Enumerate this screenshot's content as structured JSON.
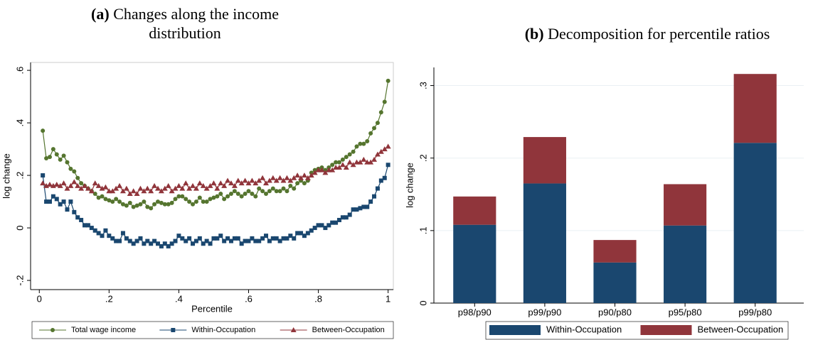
{
  "chart_data": [
    {
      "type": "line",
      "label": "(a)",
      "title": "Changes along the income distribution",
      "xlabel": "Percentile",
      "ylabel": "log change",
      "xlim": [
        -0.025,
        1.015
      ],
      "ylim": [
        -0.235,
        0.63
      ],
      "xticks": [
        0,
        {
          "value": 0.2,
          "label": ".2"
        },
        {
          "value": 0.4,
          "label": ".4"
        },
        {
          "value": 0.6,
          "label": ".6"
        },
        {
          "value": 0.8,
          "label": ".8"
        },
        1
      ],
      "yticks": [
        {
          "value": -0.2,
          "label": "-.2"
        },
        0,
        {
          "value": 0.2,
          "label": ".2"
        },
        {
          "value": 0.4,
          "label": ".4"
        },
        {
          "value": 0.6,
          "label": ".6"
        }
      ],
      "grid": false,
      "legend": "bottom",
      "x": [
        0.01,
        0.02,
        0.03,
        0.04,
        0.05,
        0.06,
        0.07,
        0.08,
        0.09,
        0.1,
        0.11,
        0.12,
        0.13,
        0.14,
        0.15,
        0.16,
        0.17,
        0.18,
        0.19,
        0.2,
        0.21,
        0.22,
        0.23,
        0.24,
        0.25,
        0.26,
        0.27,
        0.28,
        0.29,
        0.3,
        0.31,
        0.32,
        0.33,
        0.34,
        0.35,
        0.36,
        0.37,
        0.38,
        0.39,
        0.4,
        0.41,
        0.42,
        0.43,
        0.44,
        0.45,
        0.46,
        0.47,
        0.48,
        0.49,
        0.5,
        0.51,
        0.52,
        0.53,
        0.54,
        0.55,
        0.56,
        0.57,
        0.58,
        0.59,
        0.6,
        0.61,
        0.62,
        0.63,
        0.64,
        0.65,
        0.66,
        0.67,
        0.68,
        0.69,
        0.7,
        0.71,
        0.72,
        0.73,
        0.74,
        0.75,
        0.76,
        0.77,
        0.78,
        0.79,
        0.8,
        0.81,
        0.82,
        0.83,
        0.84,
        0.85,
        0.86,
        0.87,
        0.88,
        0.89,
        0.9,
        0.91,
        0.92,
        0.93,
        0.94,
        0.95,
        0.96,
        0.97,
        0.98,
        0.99,
        1
      ],
      "series": [
        {
          "name": "Total wage income",
          "color": "#55752f",
          "marker": "circle",
          "values": [
            0.37,
            0.265,
            0.27,
            0.3,
            0.28,
            0.26,
            0.275,
            0.25,
            0.225,
            0.215,
            0.19,
            0.17,
            0.16,
            0.15,
            0.14,
            0.13,
            0.115,
            0.12,
            0.11,
            0.105,
            0.1,
            0.11,
            0.1,
            0.09,
            0.085,
            0.095,
            0.08,
            0.085,
            0.09,
            0.1,
            0.08,
            0.075,
            0.09,
            0.1,
            0.095,
            0.09,
            0.09,
            0.095,
            0.11,
            0.12,
            0.12,
            0.11,
            0.1,
            0.09,
            0.1,
            0.115,
            0.1,
            0.1,
            0.11,
            0.115,
            0.12,
            0.13,
            0.11,
            0.12,
            0.13,
            0.14,
            0.13,
            0.12,
            0.13,
            0.14,
            0.13,
            0.12,
            0.15,
            0.14,
            0.13,
            0.14,
            0.15,
            0.14,
            0.14,
            0.15,
            0.14,
            0.16,
            0.15,
            0.17,
            0.18,
            0.17,
            0.18,
            0.21,
            0.22,
            0.225,
            0.23,
            0.22,
            0.23,
            0.24,
            0.25,
            0.25,
            0.26,
            0.27,
            0.28,
            0.29,
            0.31,
            0.32,
            0.32,
            0.33,
            0.36,
            0.38,
            0.4,
            0.44,
            0.48,
            0.56
          ]
        },
        {
          "name": "Within-Occupation",
          "color": "#1a476f",
          "marker": "square",
          "values": [
            0.2,
            0.1,
            0.1,
            0.12,
            0.11,
            0.09,
            0.1,
            0.07,
            0.1,
            0.06,
            0.04,
            0.03,
            0.01,
            0.01,
            0,
            -0.01,
            -0.02,
            -0.03,
            -0.01,
            -0.03,
            -0.04,
            -0.05,
            -0.05,
            -0.02,
            -0.04,
            -0.05,
            -0.06,
            -0.05,
            -0.04,
            -0.06,
            -0.05,
            -0.06,
            -0.05,
            -0.06,
            -0.07,
            -0.06,
            -0.07,
            -0.06,
            -0.05,
            -0.03,
            -0.04,
            -0.05,
            -0.04,
            -0.06,
            -0.05,
            -0.04,
            -0.06,
            -0.05,
            -0.06,
            -0.04,
            -0.04,
            -0.03,
            -0.05,
            -0.04,
            -0.05,
            -0.04,
            -0.04,
            -0.06,
            -0.05,
            -0.05,
            -0.04,
            -0.05,
            -0.05,
            -0.04,
            -0.03,
            -0.05,
            -0.04,
            -0.04,
            -0.05,
            -0.04,
            -0.04,
            -0.03,
            -0.04,
            -0.02,
            -0.02,
            -0.03,
            -0.02,
            -0.01,
            0,
            0.01,
            0.01,
            0,
            0.01,
            0.02,
            0.02,
            0.03,
            0.04,
            0.04,
            0.05,
            0.07,
            0.07,
            0.075,
            0.08,
            0.08,
            0.1,
            0.12,
            0.15,
            0.18,
            0.19,
            0.24
          ]
        },
        {
          "name": "Between-Occupation",
          "color": "#90353b",
          "marker": "triangle",
          "values": [
            0.17,
            0.16,
            0.165,
            0.16,
            0.165,
            0.16,
            0.17,
            0.15,
            0.16,
            0.175,
            0.16,
            0.15,
            0.16,
            0.15,
            0.14,
            0.17,
            0.16,
            0.15,
            0.155,
            0.14,
            0.14,
            0.15,
            0.16,
            0.14,
            0.15,
            0.13,
            0.14,
            0.13,
            0.15,
            0.14,
            0.15,
            0.14,
            0.16,
            0.15,
            0.14,
            0.15,
            0.16,
            0.14,
            0.15,
            0.16,
            0.15,
            0.17,
            0.15,
            0.16,
            0.15,
            0.17,
            0.16,
            0.15,
            0.16,
            0.17,
            0.15,
            0.17,
            0.16,
            0.18,
            0.17,
            0.16,
            0.18,
            0.17,
            0.18,
            0.17,
            0.18,
            0.17,
            0.18,
            0.19,
            0.17,
            0.18,
            0.19,
            0.18,
            0.19,
            0.18,
            0.19,
            0.18,
            0.19,
            0.2,
            0.19,
            0.2,
            0.19,
            0.2,
            0.21,
            0.22,
            0.22,
            0.21,
            0.22,
            0.22,
            0.23,
            0.23,
            0.24,
            0.23,
            0.25,
            0.24,
            0.25,
            0.25,
            0.26,
            0.25,
            0.25,
            0.26,
            0.28,
            0.29,
            0.3,
            0.31
          ]
        }
      ]
    },
    {
      "type": "stacked_bar",
      "label": "(b)",
      "title": "Decomposition for percentile ratios",
      "ylabel": "log change",
      "ylim": [
        0,
        0.325
      ],
      "yticks": [
        0,
        {
          "value": 0.1,
          "label": ".1"
        },
        {
          "value": 0.2,
          "label": ".2"
        },
        {
          "value": 0.3,
          "label": ".3"
        }
      ],
      "grid": true,
      "legend": "bottom",
      "categories": [
        "p98/p90",
        "p99/p90",
        "p90/p80",
        "p95/p80",
        "p99/p80"
      ],
      "series": [
        {
          "name": "Within-Occupation",
          "color": "#1a476f",
          "values": [
            0.108,
            0.165,
            0.056,
            0.107,
            0.221
          ]
        },
        {
          "name": "Between-Occupation",
          "color": "#90353b",
          "values": [
            0.039,
            0.064,
            0.031,
            0.057,
            0.095
          ]
        }
      ]
    }
  ]
}
